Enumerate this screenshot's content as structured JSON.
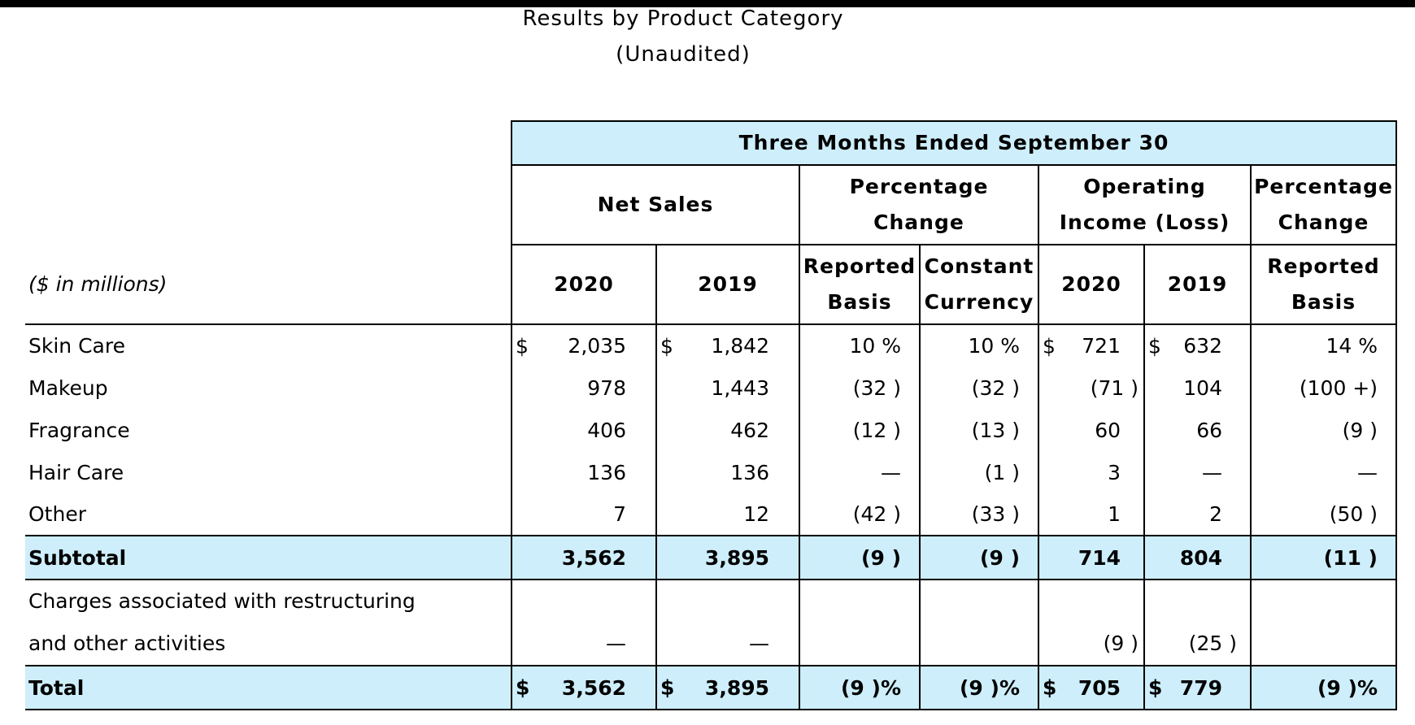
{
  "title": "Results by Product Category",
  "subtitle": "(Unaudited)",
  "header": {
    "period": "Three Months Ended September 30",
    "net_sales": "Net Sales",
    "pct_change_1": "Percentage Change",
    "operating_income": "Operating Income (Loss)",
    "pct_change_2": "Percentage Change",
    "units_label": "($ in millions)",
    "col_2020_a": "2020",
    "col_2019_a": "2019",
    "reported_basis_1": "Reported Basis",
    "constant_currency": "Constant Currency",
    "col_2020_b": "2020",
    "col_2019_b": "2019",
    "reported_basis_2": "Reported Basis"
  },
  "currency_symbol": "$",
  "rows": [
    {
      "label": "Skin Care",
      "ns2020": "2,035",
      "ns2019": "1,842",
      "rep": "10 %",
      "cc": "10 %",
      "oi2020": "721",
      "oi2019": "632",
      "oirep": "14 %"
    },
    {
      "label": "Makeup",
      "ns2020": "978",
      "ns2019": "1,443",
      "rep": "(32 )",
      "cc": "(32 )",
      "oi2020": "(71 )",
      "oi2019": "104",
      "oirep": "(100 +)"
    },
    {
      "label": "Fragrance",
      "ns2020": "406",
      "ns2019": "462",
      "rep": "(12 )",
      "cc": "(13 )",
      "oi2020": "60",
      "oi2019": "66",
      "oirep": "(9 )"
    },
    {
      "label": "Hair Care",
      "ns2020": "136",
      "ns2019": "136",
      "rep": "—",
      "cc": "(1 )",
      "oi2020": "3",
      "oi2019": "—",
      "oirep": "—"
    },
    {
      "label": "Other",
      "ns2020": "7",
      "ns2019": "12",
      "rep": "(42 )",
      "cc": "(33 )",
      "oi2020": "1",
      "oi2019": "2",
      "oirep": "(50 )"
    }
  ],
  "subtotal": {
    "label": "Subtotal",
    "ns2020": "3,562",
    "ns2019": "3,895",
    "rep": "(9 )",
    "cc": "(9 )",
    "oi2020": "714",
    "oi2019": "804",
    "oirep": "(11 )"
  },
  "charges": {
    "label_line1": "Charges associated with restructuring",
    "label_line2": "and other activities",
    "ns2020": "—",
    "ns2019": "—",
    "oi2020": "(9 )",
    "oi2019": "(25 )"
  },
  "total": {
    "label": "Total",
    "ns2020": "3,562",
    "ns2019": "3,895",
    "rep": "(9 )%",
    "cc": "(9 )%",
    "oi2020": "705",
    "oi2019": "779",
    "oirep": "(9 )%"
  },
  "colors": {
    "header_band": "#cdeefa",
    "rule": "#000000"
  }
}
